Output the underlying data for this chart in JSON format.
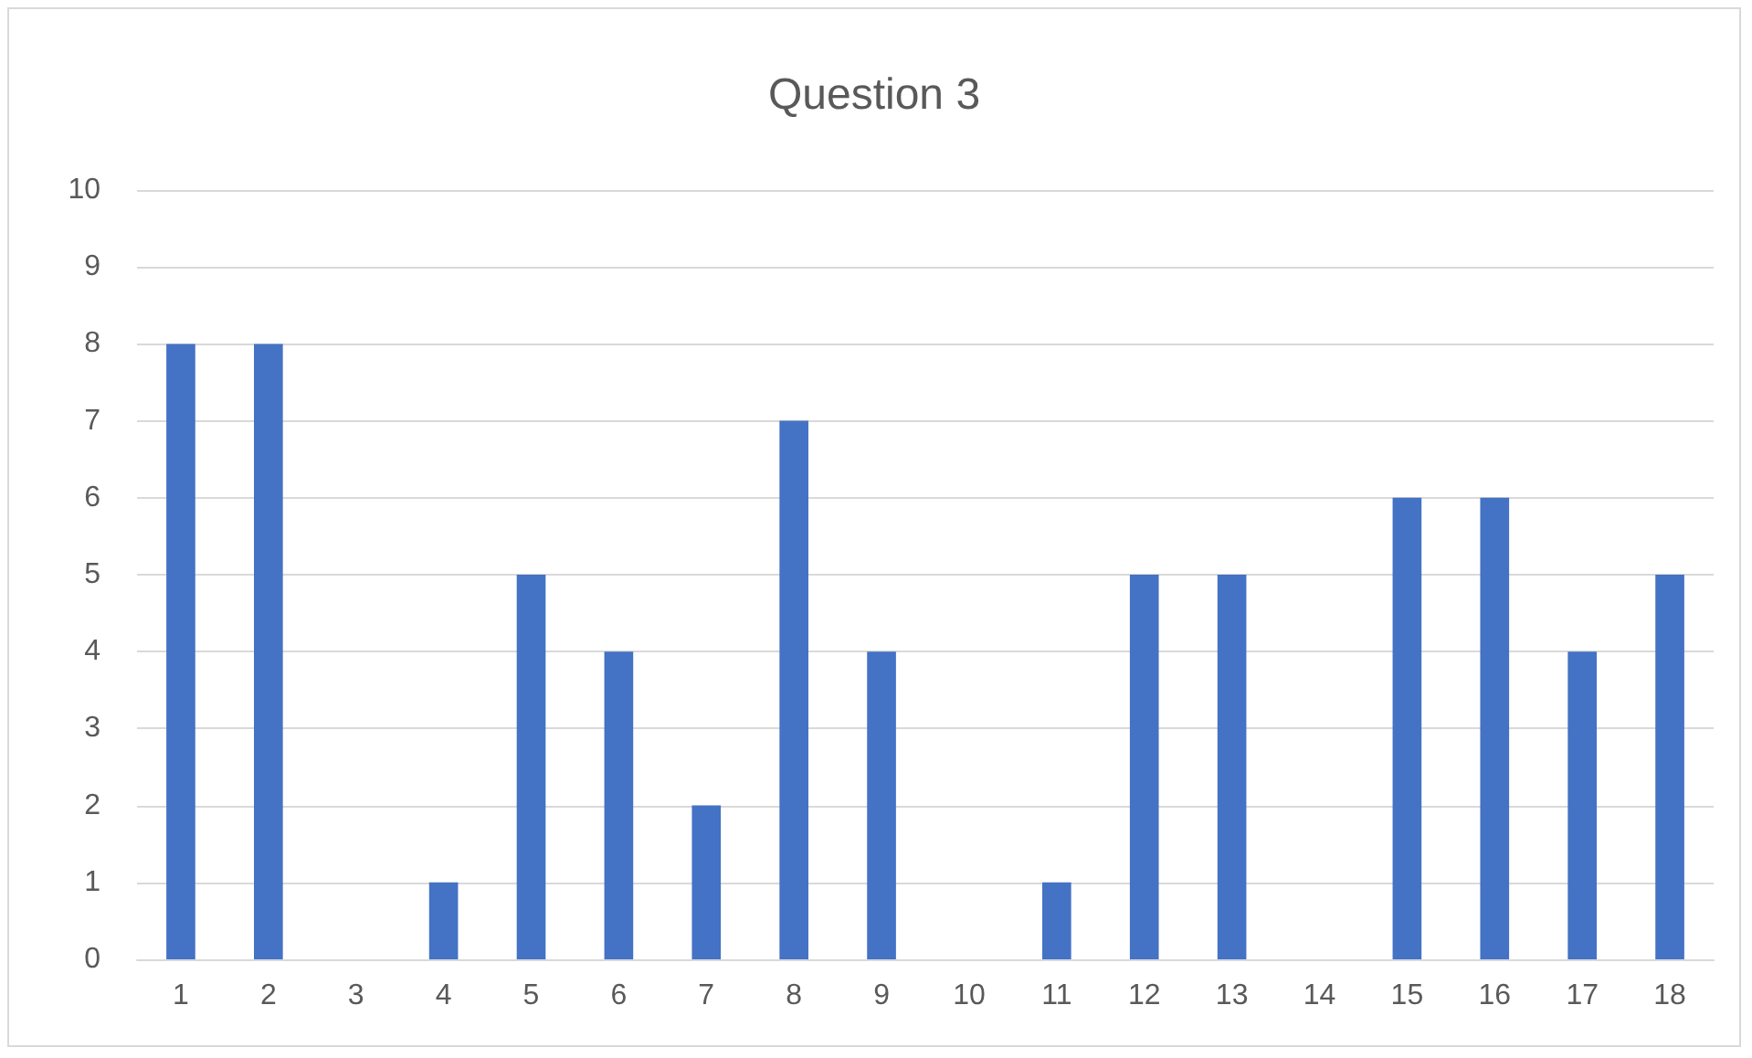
{
  "chart_data": {
    "type": "bar",
    "title": "Question 3",
    "categories": [
      "1",
      "2",
      "3",
      "4",
      "5",
      "6",
      "7",
      "8",
      "9",
      "10",
      "11",
      "12",
      "13",
      "14",
      "15",
      "16",
      "17",
      "18"
    ],
    "values": [
      8,
      8,
      0,
      1,
      5,
      4,
      2,
      7,
      4,
      0,
      1,
      5,
      5,
      0,
      6,
      6,
      4,
      5
    ],
    "color": "#4472c4",
    "ylim": [
      0,
      10
    ],
    "yticks": [
      0,
      1,
      2,
      3,
      4,
      5,
      6,
      7,
      8,
      9,
      10
    ],
    "grid": "y"
  }
}
